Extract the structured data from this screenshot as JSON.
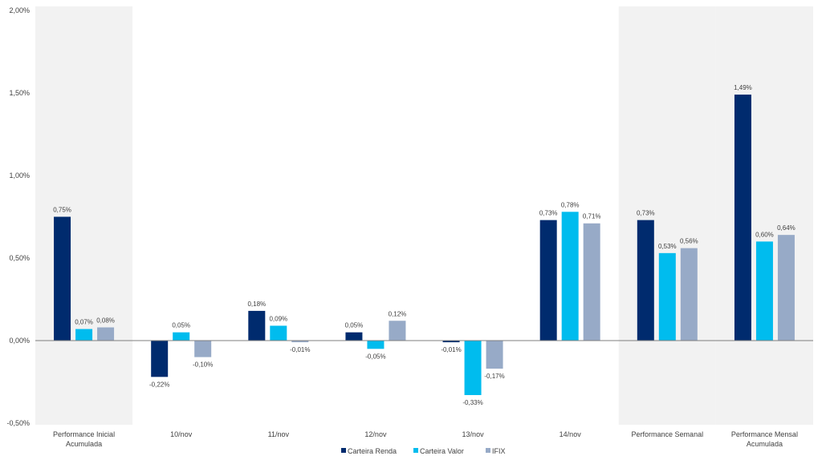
{
  "chart_data": {
    "type": "bar",
    "title": "",
    "xlabel": "",
    "ylabel": "",
    "ylim": [
      -0.5,
      2.0
    ],
    "yticks": [
      -0.5,
      0,
      0.5,
      1.0,
      1.5,
      2.0
    ],
    "ytick_labels": [
      "-0,50%",
      "0,00%",
      "0,50%",
      "1,00%",
      "1,50%",
      "2,00%"
    ],
    "grid": false,
    "legend_position": "bottom",
    "categories": [
      [
        "Performance Inicial",
        "Acumulada"
      ],
      [
        "10/nov"
      ],
      [
        "11/nov"
      ],
      [
        "12/nov"
      ],
      [
        "13/nov"
      ],
      [
        "14/nov"
      ],
      [
        "Performance Semanal"
      ],
      [
        "Performance Mensal",
        "Acumulada"
      ]
    ],
    "highlighted_categories": [
      0,
      6,
      7
    ],
    "series": [
      {
        "name": "Carteira Renda",
        "color": "#002B6E",
        "values": [
          0.75,
          -0.22,
          0.18,
          0.05,
          -0.01,
          0.73,
          0.73,
          1.49
        ],
        "labels": [
          "0,75%",
          "-0,22%",
          "0,18%",
          "0,05%",
          "-0,01%",
          "0,73%",
          "0,73%",
          "1,49%"
        ]
      },
      {
        "name": "Carteira Valor",
        "color": "#00BCEE",
        "values": [
          0.07,
          0.05,
          0.09,
          -0.05,
          -0.33,
          0.78,
          0.53,
          0.6
        ],
        "labels": [
          "0,07%",
          "0,05%",
          "0,09%",
          "-0,05%",
          "-0,33%",
          "0,78%",
          "0,53%",
          "0,60%"
        ]
      },
      {
        "name": "IFIX",
        "color": "#97AAC7",
        "values": [
          0.08,
          -0.1,
          -0.01,
          0.12,
          -0.17,
          0.71,
          0.56,
          0.64
        ],
        "labels": [
          "0,08%",
          "-0,10%",
          "-0,01%",
          "0,12%",
          "-0,17%",
          "0,71%",
          "0,56%",
          "0,64%"
        ]
      }
    ]
  }
}
